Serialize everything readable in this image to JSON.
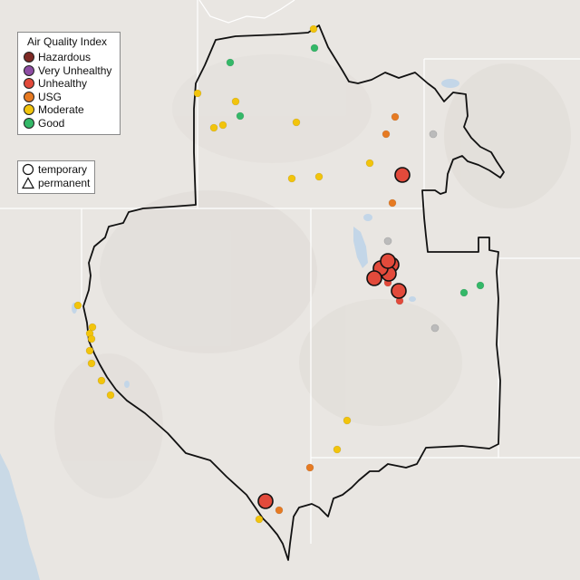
{
  "colors": {
    "land": "#e9e6e2",
    "ocean": "#c9d9e6",
    "water": "#c3d6e8",
    "border": "#111111",
    "state_line": "#ffffff",
    "no_data": "#bbbbbb"
  },
  "legend": {
    "title": "Air Quality Index",
    "categories": [
      {
        "label": "Hazardous",
        "color": "#7e2a25"
      },
      {
        "label": "Very Unhealthy",
        "color": "#8e4da3"
      },
      {
        "label": "Unhealthy",
        "color": "#e24a3b"
      },
      {
        "label": "USG",
        "color": "#e67a22"
      },
      {
        "label": "Moderate",
        "color": "#f2c40c"
      },
      {
        "label": "Good",
        "color": "#34b868"
      }
    ],
    "types": [
      {
        "label": "temporary",
        "shape": "circle-icon"
      },
      {
        "label": "permanent",
        "shape": "triangle-icon"
      }
    ]
  }
}
